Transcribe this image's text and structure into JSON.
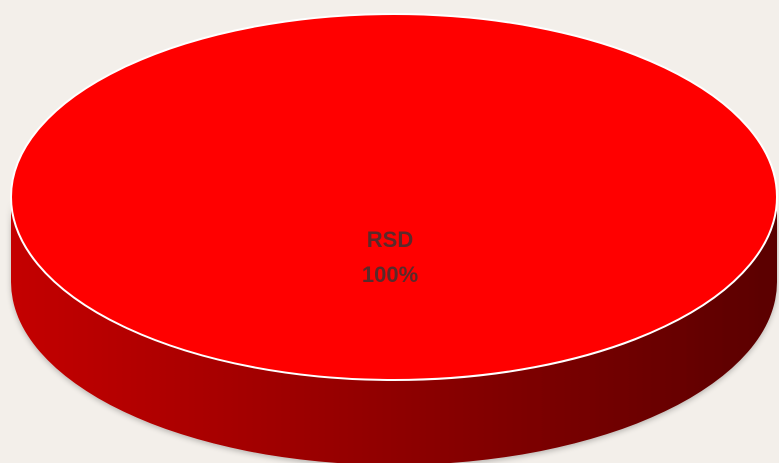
{
  "chart_data": {
    "type": "pie",
    "title": "",
    "slices": [
      {
        "label": "RSD",
        "value": 100,
        "value_label": "100%"
      }
    ],
    "colors": {
      "top": "#ff0000",
      "side_light": "#c40000",
      "side_dark": "#5a0000",
      "edge": "#ffffff",
      "background": "#f3efea",
      "label_text": "#5a2a2a"
    }
  }
}
